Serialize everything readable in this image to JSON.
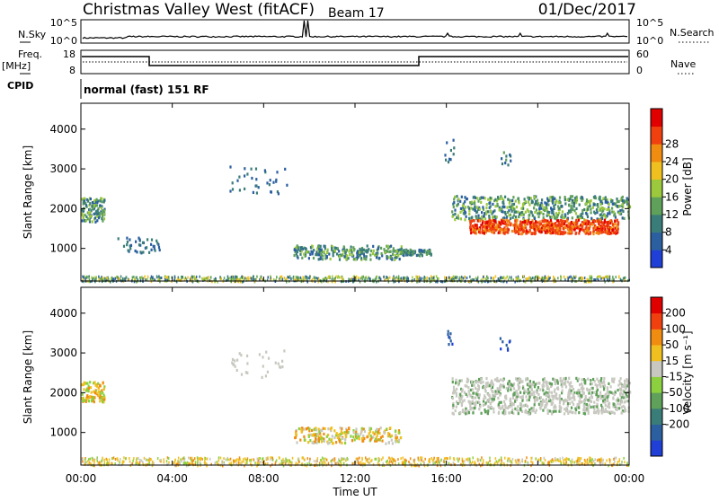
{
  "header": {
    "title": "Christmas Valley West (fitACF)",
    "beam": "Beam 17",
    "date": "01/Dec/2017"
  },
  "top_panels": {
    "nsky_label": "N.Sky",
    "nsky_ticks": [
      "10^5",
      "10^0"
    ],
    "nsearch_label": "N.Search",
    "nsearch_ticks": [
      "10^5",
      "10^0"
    ],
    "freq_label": "Freq.",
    "freq_unit": "[MHz]",
    "freq_ticks": [
      "18",
      "8"
    ],
    "nave_label": "Nave",
    "nave_ticks": [
      "60",
      "0"
    ],
    "cpid_label": "CPID",
    "cpid_value": "normal (fast) 151 RF"
  },
  "chart_data": [
    {
      "type": "heatmap",
      "name": "power",
      "ylabel": "Slant Range [km]",
      "y_ticks": [
        "1000",
        "2000",
        "3000",
        "4000"
      ],
      "ylim": [
        180,
        4650
      ],
      "colorbar_label": "Power [dB]",
      "colorbar_ticks": [
        "4",
        "8",
        "12",
        "16",
        "20",
        "24",
        "28"
      ],
      "colorbar_range": [
        0,
        31
      ],
      "colors": [
        "#1f3fd6",
        "#2b5fa0",
        "#3a7d78",
        "#5fa05a",
        "#9bc83c",
        "#f0c020",
        "#f08c10",
        "#f04010",
        "#e00000"
      ]
    },
    {
      "type": "heatmap",
      "name": "velocity",
      "ylabel": "Slant Range [km]",
      "y_ticks": [
        "1000",
        "2000",
        "3000",
        "4000"
      ],
      "ylim": [
        180,
        4650
      ],
      "colorbar_label": "Velocity [m s⁻¹]",
      "colorbar_ticks": [
        "200",
        "100",
        "50",
        "15",
        "-15",
        "-50",
        "-100",
        "-200"
      ],
      "colors": [
        "#1f3fd6",
        "#2b5fa0",
        "#3a7d78",
        "#5fa05a",
        "#8cd040",
        "#c8c8c0",
        "#f0c020",
        "#f08c10",
        "#f04010",
        "#e00000"
      ],
      "xlabel": "Time UT",
      "x_ticks": [
        "00:00",
        "04:00",
        "08:00",
        "12:00",
        "16:00",
        "20:00",
        "00:00"
      ]
    }
  ]
}
